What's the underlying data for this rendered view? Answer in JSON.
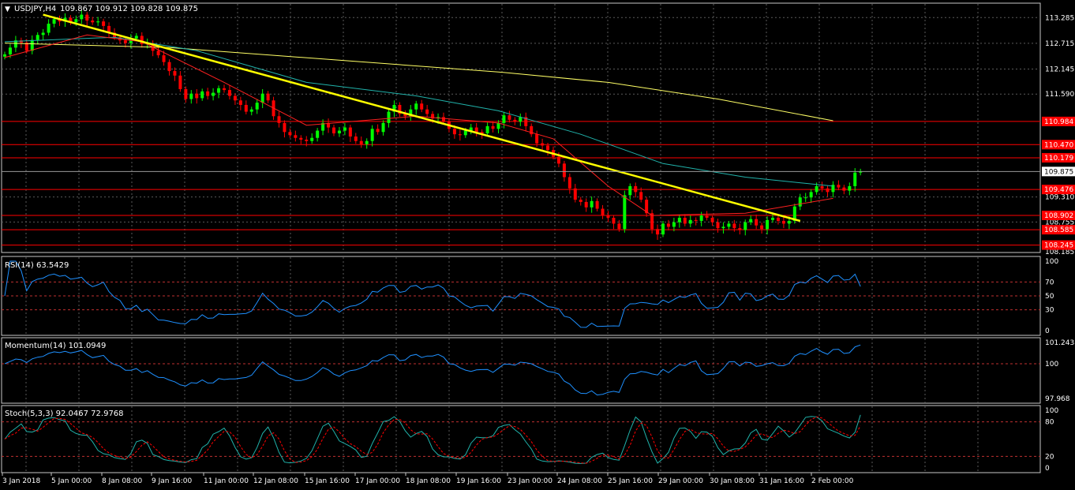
{
  "main": {
    "symbol": "USDJPY,H4",
    "ohlc": "109.867 109.912 109.828 109.875",
    "price_axis": [
      "113.285",
      "112.715",
      "112.145",
      "111.590",
      "109.310",
      "108.755"
    ],
    "current_price": "109.875",
    "level_tags": [
      "110.984",
      "110.470",
      "110.179",
      "109.476",
      "108.902",
      "108.585",
      "108.245"
    ],
    "bottom_clip": "108.185"
  },
  "rsi": {
    "label": "RSI(14) 63.5429",
    "axis": [
      "100",
      "70",
      "50",
      "30",
      "0"
    ]
  },
  "momentum": {
    "label": "Momentum(14) 101.0949",
    "axis": [
      "101.2438",
      "100",
      "97.968"
    ]
  },
  "stoch": {
    "label": "Stoch(5,3,3) 92.0467 72.9768",
    "axis": [
      "100",
      "80",
      "20",
      "0"
    ]
  },
  "time_axis": [
    "3 Jan 2018",
    "5 Jan 00:00",
    "8 Jan 08:00",
    "9 Jan 16:00",
    "11 Jan 00:00",
    "12 Jan 08:00",
    "15 Jan 16:00",
    "17 Jan 00:00",
    "18 Jan 08:00",
    "19 Jan 16:00",
    "23 Jan 00:00",
    "24 Jan 08:00",
    "25 Jan 16:00",
    "29 Jan 00:00",
    "30 Jan 08:00",
    "31 Jan 16:00",
    "2 Feb 00:00"
  ],
  "colors": {
    "bull": "#00ff00",
    "bear": "#ff0000",
    "trendline": "#ffff00",
    "ma_slow": "#ffff66",
    "ma_mid": "#20b2aa",
    "ma_fast": "#ff2020",
    "osc": "#1e90ff",
    "signal": "#ff0000",
    "level": "#ff0000",
    "grid": "#5a5a5a"
  },
  "chart_data": {
    "type": "candlestick",
    "symbol": "USDJPY",
    "timeframe": "H4",
    "ylim": [
      108.185,
      113.5
    ],
    "closes": [
      112.47,
      112.62,
      112.78,
      112.73,
      112.55,
      112.79,
      112.9,
      112.95,
      113.15,
      113.25,
      113.2,
      113.28,
      113.18,
      113.25,
      113.35,
      113.22,
      113.18,
      113.2,
      113.1,
      112.95,
      112.85,
      112.78,
      112.72,
      112.82,
      112.88,
      112.7,
      112.72,
      112.55,
      112.45,
      112.3,
      112.1,
      112.0,
      111.7,
      111.48,
      111.6,
      111.5,
      111.65,
      111.55,
      111.62,
      111.72,
      111.68,
      111.55,
      111.45,
      111.35,
      111.2,
      111.25,
      111.4,
      111.6,
      111.45,
      111.1,
      110.95,
      110.75,
      110.68,
      110.62,
      110.58,
      110.55,
      110.62,
      110.78,
      110.95,
      110.85,
      110.72,
      110.78,
      110.85,
      110.65,
      110.55,
      110.48,
      110.55,
      110.82,
      110.75,
      110.95,
      111.2,
      111.35,
      111.15,
      111.1,
      111.25,
      111.38,
      111.25,
      111.15,
      111.05,
      111.08,
      110.98,
      110.82,
      110.7,
      110.68,
      110.78,
      110.85,
      110.75,
      110.72,
      110.88,
      110.82,
      110.95,
      111.12,
      111.02,
      110.98,
      111.08,
      110.88,
      110.7,
      110.5,
      110.45,
      110.35,
      110.2,
      110.05,
      109.75,
      109.5,
      109.25,
      109.2,
      109.08,
      109.22,
      109.05,
      108.9,
      108.85,
      108.72,
      108.6,
      109.35,
      109.55,
      109.42,
      109.25,
      108.95,
      108.6,
      108.48,
      108.72,
      108.65,
      108.75,
      108.85,
      108.72,
      108.8,
      108.78,
      108.9,
      108.85,
      108.75,
      108.62,
      108.65,
      108.72,
      108.62,
      108.58,
      108.75,
      108.82,
      108.68,
      108.6,
      108.8,
      108.85,
      108.78,
      108.72,
      108.78,
      109.1,
      109.3,
      109.3,
      109.42,
      109.55,
      109.5,
      109.42,
      109.58,
      109.52,
      109.45,
      109.55,
      109.85,
      109.875
    ],
    "lines": {
      "trendline": [
        [
          7,
          113.35
        ],
        [
          145,
          108.78
        ]
      ],
      "ma_slow": [
        [
          0,
          112.72
        ],
        [
          30,
          112.62
        ],
        [
          60,
          112.35
        ],
        [
          90,
          112.08
        ],
        [
          110,
          111.85
        ],
        [
          130,
          111.48
        ],
        [
          151,
          111.0
        ]
      ],
      "ma_mid": [
        [
          0,
          112.75
        ],
        [
          20,
          112.85
        ],
        [
          35,
          112.55
        ],
        [
          55,
          111.85
        ],
        [
          75,
          111.55
        ],
        [
          90,
          111.22
        ],
        [
          105,
          110.7
        ],
        [
          120,
          110.05
        ],
        [
          135,
          109.75
        ],
        [
          151,
          109.55
        ]
      ],
      "ma_fast": [
        [
          0,
          112.4
        ],
        [
          15,
          112.9
        ],
        [
          25,
          112.75
        ],
        [
          40,
          111.85
        ],
        [
          55,
          110.9
        ],
        [
          75,
          111.1
        ],
        [
          90,
          110.95
        ],
        [
          100,
          110.6
        ],
        [
          110,
          109.55
        ],
        [
          118,
          108.9
        ],
        [
          135,
          108.95
        ],
        [
          151,
          109.28
        ]
      ]
    },
    "levels": [
      110.984,
      110.47,
      110.179,
      109.476,
      108.902,
      108.585,
      108.245
    ],
    "rsi": {
      "period": 14,
      "value": 63.5429,
      "ylim": [
        0,
        100
      ],
      "levels": [
        70,
        50,
        30
      ]
    },
    "momentum": {
      "period": 14,
      "value": 101.0949,
      "ylim": [
        97.968,
        101.2438
      ],
      "levels": [
        100
      ]
    },
    "stochastic": {
      "params": "5,3,3",
      "k": 92.0467,
      "d": 72.9768,
      "ylim": [
        0,
        100
      ],
      "levels": [
        80,
        20
      ]
    }
  }
}
